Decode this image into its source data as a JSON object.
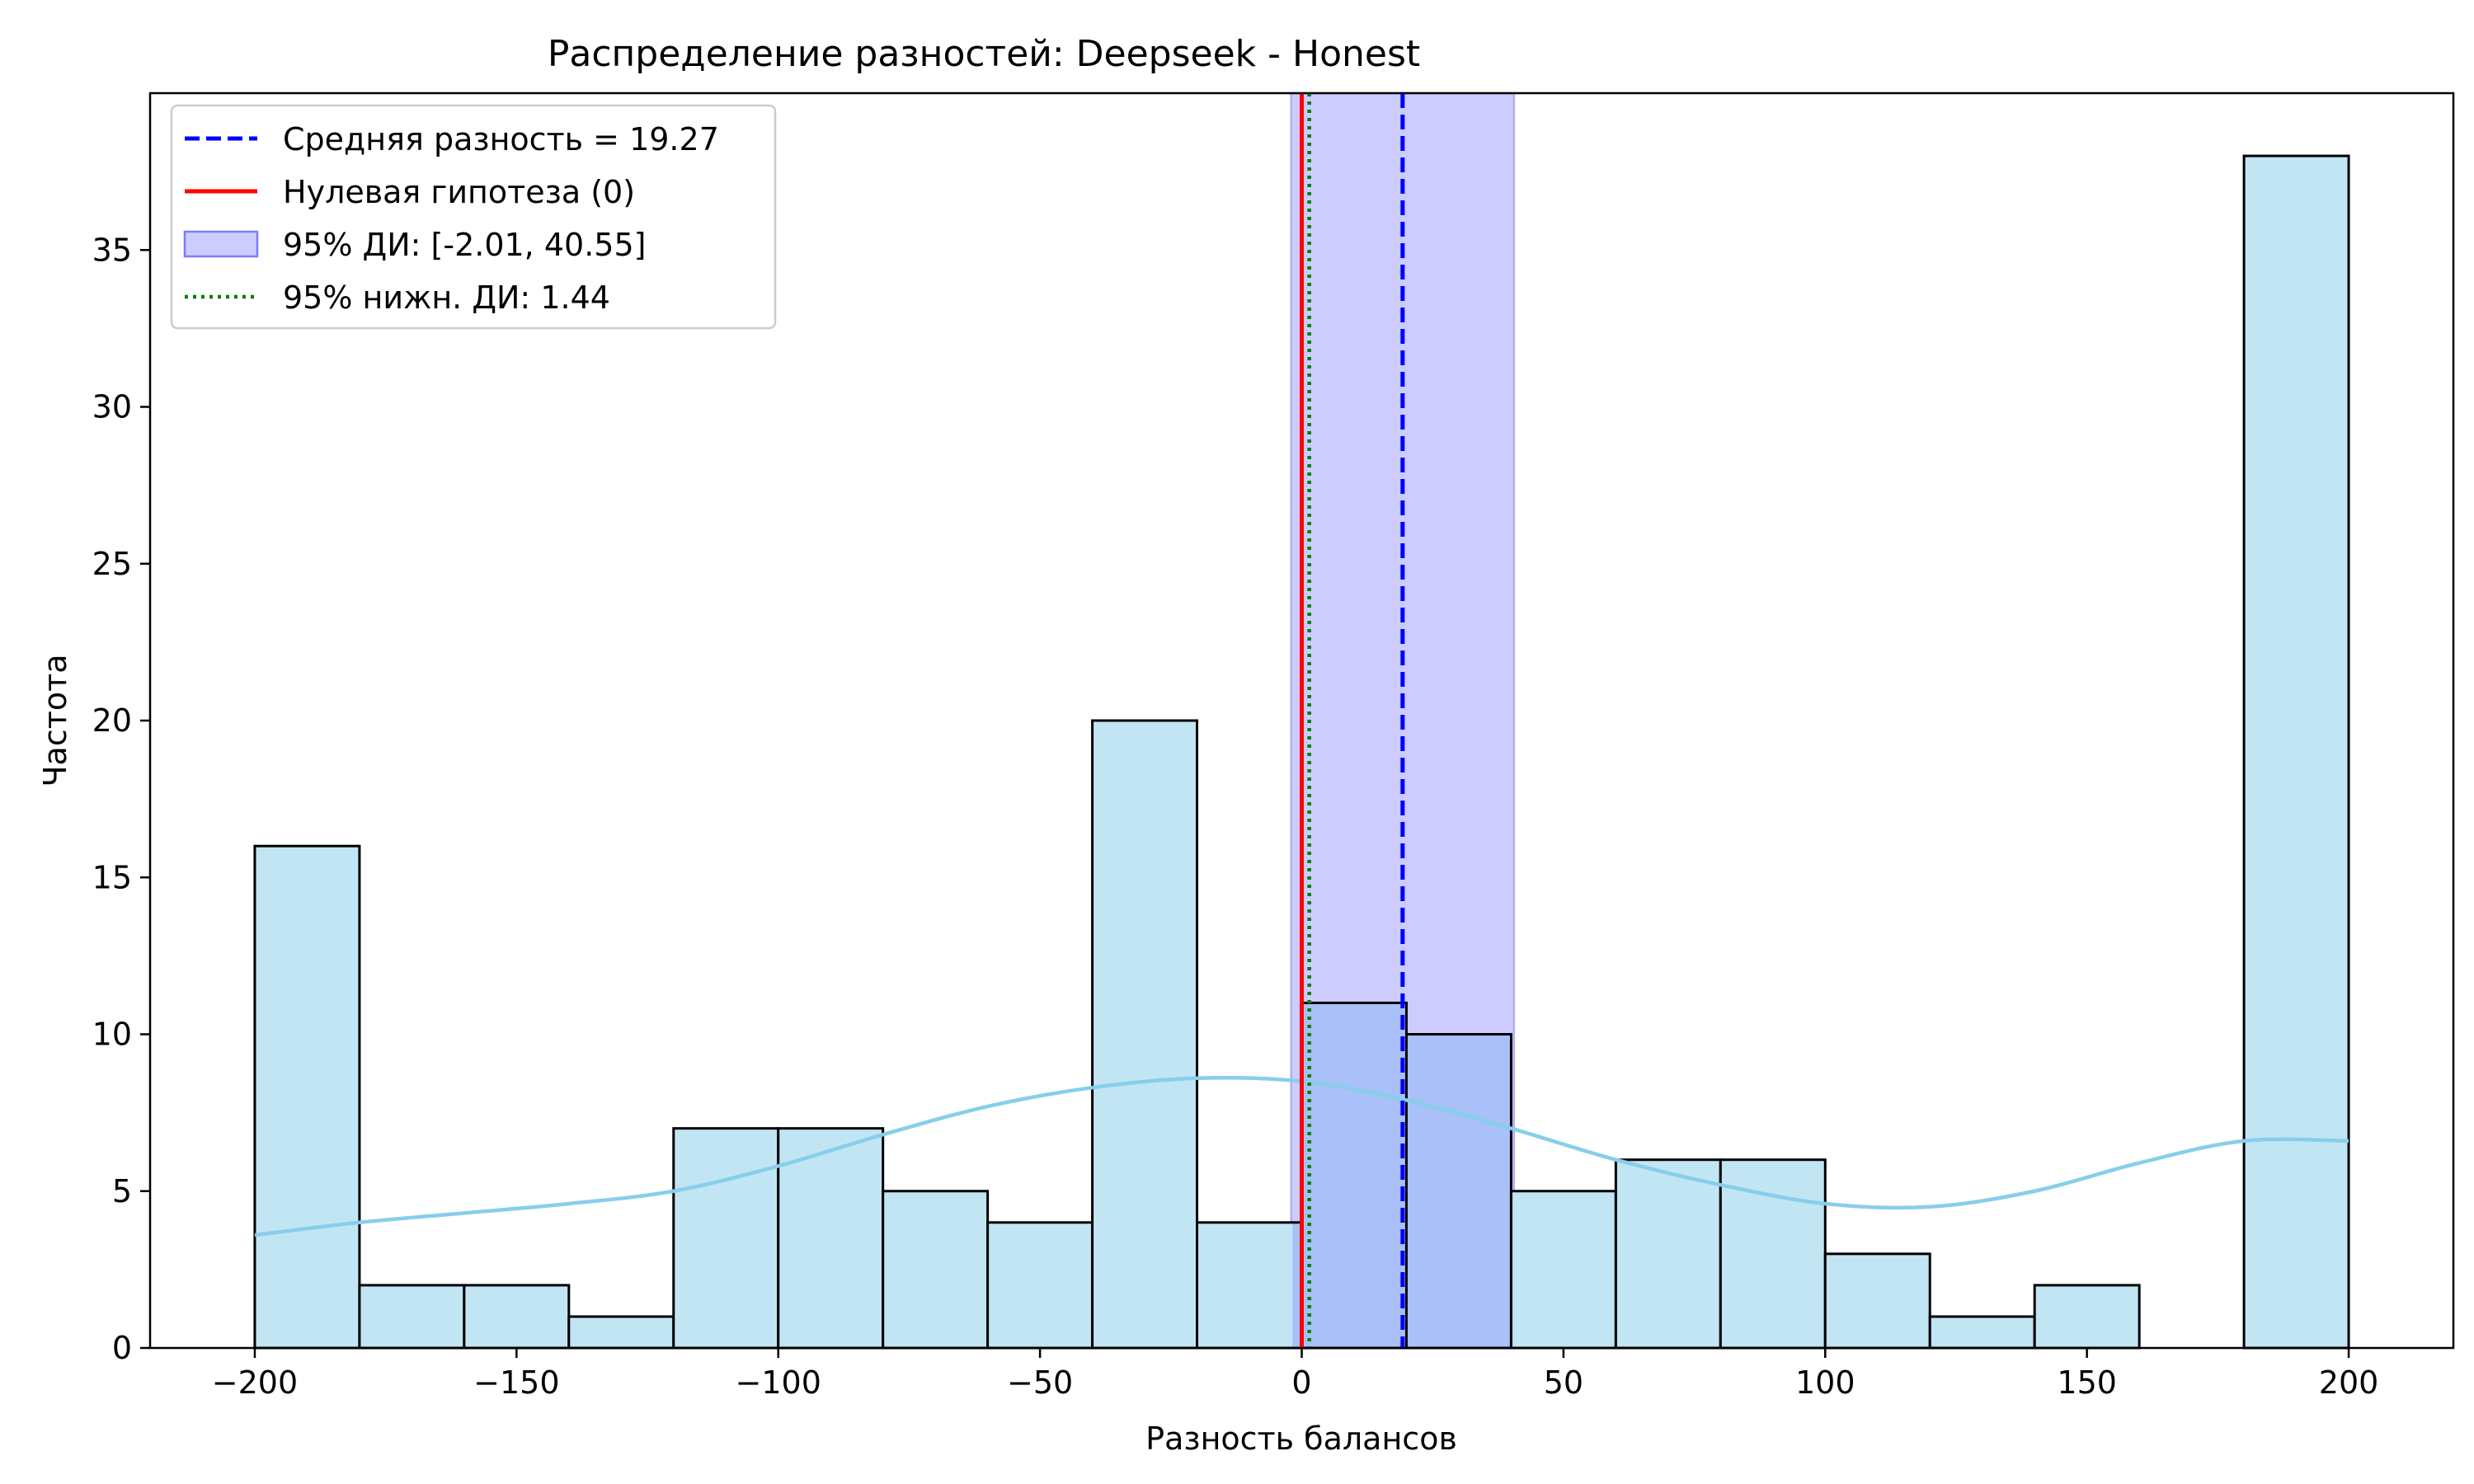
{
  "chart_data": {
    "type": "bar",
    "title": "Распределение разностей: Deepseek - Honest",
    "xlabel": "Разность балансов",
    "ylabel": "Частота",
    "xlim": [
      -220,
      220
    ],
    "ylim": [
      0,
      40
    ],
    "xticks": [
      -200,
      -150,
      -100,
      -50,
      0,
      50,
      100,
      150,
      200
    ],
    "xtick_labels": [
      "−200",
      "−150",
      "−100",
      "−50",
      "0",
      "50",
      "100",
      "150",
      "200"
    ],
    "yticks": [
      0,
      5,
      10,
      15,
      20,
      25,
      30,
      35
    ],
    "ytick_labels": [
      "0",
      "5",
      "10",
      "15",
      "20",
      "25",
      "30",
      "35"
    ],
    "bin_edges": [
      -200,
      -180,
      -160,
      -140,
      -120,
      -100,
      -80,
      -60,
      -40,
      -20,
      0,
      20,
      40,
      60,
      80,
      100,
      120,
      140,
      160,
      180,
      200
    ],
    "values": [
      16,
      2,
      2,
      1,
      7,
      7,
      5,
      4,
      20,
      4,
      11,
      10,
      5,
      6,
      6,
      3,
      1,
      2,
      0,
      38
    ],
    "kde": {
      "x": [
        -200,
        -180,
        -160,
        -140,
        -120,
        -100,
        -80,
        -60,
        -40,
        -20,
        0,
        20,
        40,
        60,
        80,
        100,
        120,
        140,
        160,
        180,
        200
      ],
      "y": [
        3.6,
        4.0,
        4.3,
        4.6,
        5.0,
        5.8,
        6.8,
        7.7,
        8.3,
        8.6,
        8.5,
        7.9,
        7.0,
        6.0,
        5.2,
        4.6,
        4.5,
        5.0,
        5.9,
        6.6,
        6.6
      ]
    },
    "mean": 19.27,
    "null_hypothesis": 0,
    "ci95": [
      -2.01,
      40.55
    ],
    "lower_ci95": 1.44,
    "legend_position": "upper-left",
    "legend": [
      {
        "label": "Средняя разность = 19.27",
        "style": "dashed",
        "color": "#0000ff"
      },
      {
        "label": "Нулевая гипотеза (0)",
        "style": "solid",
        "color": "#ff0000"
      },
      {
        "label": "95% ДИ: [-2.01, 40.55]",
        "style": "patch",
        "color": "#7b7bff"
      },
      {
        "label": "95% нижн. ДИ: 1.44",
        "style": "dotted",
        "color": "#008000"
      }
    ],
    "colors": {
      "bar_fill": "#c2e5f4",
      "bar_edge": "#000000",
      "kde": "#87ceeb",
      "ci_fill": "#ccccff",
      "ci_edge": "#b0b0ee",
      "mean_line": "#0000ff",
      "null_line": "#ff0000",
      "lower_ci_line": "#008000"
    }
  }
}
